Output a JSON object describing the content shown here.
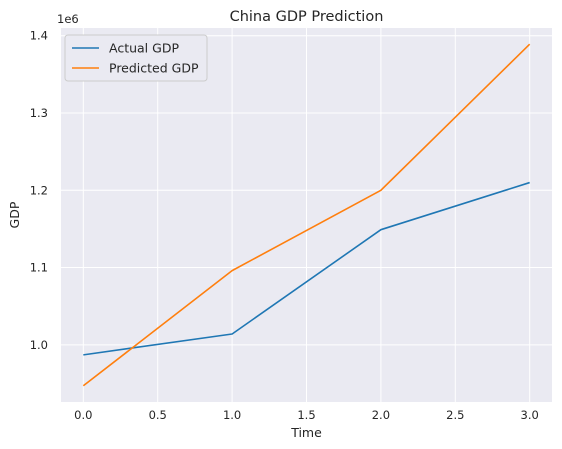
{
  "chart_data": {
    "type": "line",
    "title": "China GDP Prediction",
    "xlabel": "Time",
    "ylabel": "GDP",
    "y_offset_label": "1e6",
    "x": [
      0,
      1,
      2,
      3
    ],
    "series": [
      {
        "name": "Actual GDP",
        "values": [
          0.987,
          1.014,
          1.149,
          1.21
        ],
        "color": "#1f77b4"
      },
      {
        "name": "Predicted GDP",
        "values": [
          0.947,
          1.096,
          1.2,
          1.389
        ],
        "color": "#ff7f0e"
      }
    ],
    "xlim": [
      -0.15,
      3.15
    ],
    "ylim": [
      0.926,
      1.41
    ],
    "x_ticks": [
      0.0,
      0.5,
      1.0,
      1.5,
      2.0,
      2.5,
      3.0
    ],
    "x_tick_labels": [
      "0.0",
      "0.5",
      "1.0",
      "1.5",
      "2.0",
      "2.5",
      "3.0"
    ],
    "y_ticks": [
      1.0,
      1.1,
      1.2,
      1.3,
      1.4
    ],
    "y_tick_labels": [
      "1.0",
      "1.1",
      "1.2",
      "1.3",
      "1.4"
    ],
    "grid": true,
    "legend_position": "top-left",
    "background_color": "#eaeaf2",
    "grid_color": "#ffffff"
  }
}
